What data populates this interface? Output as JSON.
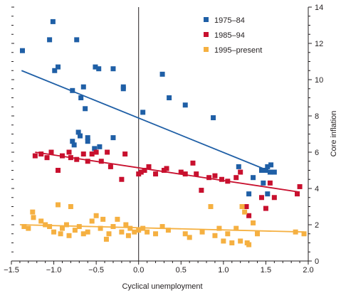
{
  "chart_data": {
    "type": "scatter",
    "xlabel": "Cyclical unemployment",
    "ylabel": "Core inflation",
    "xlim": [
      -1.5,
      2.0
    ],
    "ylim": [
      0,
      14
    ],
    "x_ticks": [
      "−1.5",
      "−1.0",
      "−0.5",
      "0.0",
      "0.5",
      "1.0",
      "1.5",
      "2.0"
    ],
    "y_ticks": [
      "0",
      "2",
      "4",
      "6",
      "8",
      "10",
      "12",
      "14"
    ],
    "y_axis_side": "right",
    "legend_position": "top-right",
    "grid": false,
    "series": [
      {
        "name": "1975–84",
        "color": "#1f5fa6",
        "trend": [
          [
            -1.38,
            10.5
          ],
          [
            1.52,
            5.0
          ]
        ],
        "points": [
          [
            -1.37,
            11.6
          ],
          [
            -1.05,
            12.2
          ],
          [
            -1.01,
            13.2
          ],
          [
            -0.99,
            10.5
          ],
          [
            -0.95,
            10.7
          ],
          [
            -0.78,
            9.4
          ],
          [
            -0.73,
            12.2
          ],
          [
            -0.68,
            9.0
          ],
          [
            -0.65,
            9.6
          ],
          [
            -0.63,
            8.4
          ],
          [
            -0.6,
            6.8
          ],
          [
            -0.6,
            6.6
          ],
          [
            -0.51,
            10.7
          ],
          [
            -0.47,
            10.6
          ],
          [
            -0.3,
            10.6
          ],
          [
            -0.18,
            9.6
          ],
          [
            -0.18,
            9.5
          ],
          [
            0.05,
            8.2
          ],
          [
            0.28,
            10.3
          ],
          [
            0.36,
            9.0
          ],
          [
            0.55,
            8.6
          ],
          [
            0.88,
            7.9
          ],
          [
            -0.78,
            6.6
          ],
          [
            -0.76,
            6.4
          ],
          [
            -0.71,
            7.1
          ],
          [
            -0.69,
            6.9
          ],
          [
            -0.46,
            6.3
          ],
          [
            -0.52,
            6.2
          ],
          [
            -0.3,
            6.8
          ],
          [
            1.18,
            5.2
          ],
          [
            1.3,
            3.7
          ],
          [
            1.35,
            4.6
          ],
          [
            1.45,
            5.0
          ],
          [
            1.47,
            4.3
          ],
          [
            1.5,
            5.0
          ],
          [
            1.52,
            5.2
          ],
          [
            1.55,
            4.9
          ],
          [
            1.56,
            5.3
          ],
          [
            1.6,
            4.9
          ],
          [
            1.52,
            3.7
          ]
        ]
      },
      {
        "name": "1985–94",
        "color": "#c8102e",
        "trend": [
          [
            -1.22,
            6.0
          ],
          [
            1.9,
            3.8
          ]
        ],
        "points": [
          [
            -1.22,
            5.8
          ],
          [
            -1.15,
            5.9
          ],
          [
            -1.08,
            5.7
          ],
          [
            -1.03,
            6.0
          ],
          [
            -0.95,
            5.0
          ],
          [
            -0.9,
            5.8
          ],
          [
            -0.82,
            6.0
          ],
          [
            -0.8,
            5.7
          ],
          [
            -0.73,
            5.6
          ],
          [
            -0.65,
            5.9
          ],
          [
            -0.6,
            5.5
          ],
          [
            -0.55,
            5.9
          ],
          [
            -0.5,
            6.0
          ],
          [
            -0.44,
            5.5
          ],
          [
            -0.37,
            6.0
          ],
          [
            -0.33,
            5.2
          ],
          [
            -0.2,
            4.5
          ],
          [
            -0.16,
            5.9
          ],
          [
            0.0,
            4.8
          ],
          [
            0.03,
            4.9
          ],
          [
            0.07,
            5.0
          ],
          [
            0.12,
            5.2
          ],
          [
            0.2,
            4.8
          ],
          [
            0.3,
            5.0
          ],
          [
            0.33,
            5.1
          ],
          [
            0.5,
            4.9
          ],
          [
            0.55,
            4.8
          ],
          [
            0.64,
            5.4
          ],
          [
            0.68,
            4.8
          ],
          [
            0.74,
            3.9
          ],
          [
            0.83,
            4.6
          ],
          [
            0.9,
            4.7
          ],
          [
            0.98,
            4.5
          ],
          [
            1.05,
            4.4
          ],
          [
            1.15,
            4.6
          ],
          [
            1.2,
            4.9
          ],
          [
            1.27,
            3.0
          ],
          [
            1.3,
            2.5
          ],
          [
            1.45,
            3.5
          ],
          [
            1.5,
            2.9
          ],
          [
            1.55,
            4.3
          ],
          [
            1.6,
            3.5
          ],
          [
            1.87,
            3.7
          ],
          [
            1.9,
            4.1
          ]
        ]
      },
      {
        "name": "1995–present",
        "color": "#f5b041",
        "trend": [
          [
            -1.4,
            2.0
          ],
          [
            1.95,
            1.6
          ]
        ],
        "points": [
          [
            -1.35,
            1.9
          ],
          [
            -1.3,
            1.8
          ],
          [
            -1.25,
            2.7
          ],
          [
            -1.24,
            2.4
          ],
          [
            -1.15,
            2.2
          ],
          [
            -1.1,
            2.0
          ],
          [
            -1.05,
            1.9
          ],
          [
            -1.0,
            1.6
          ],
          [
            -0.95,
            3.1
          ],
          [
            -0.92,
            1.5
          ],
          [
            -0.9,
            1.8
          ],
          [
            -0.85,
            2.0
          ],
          [
            -0.82,
            1.4
          ],
          [
            -0.8,
            3.0
          ],
          [
            -0.75,
            1.7
          ],
          [
            -0.7,
            1.9
          ],
          [
            -0.65,
            1.5
          ],
          [
            -0.6,
            1.6
          ],
          [
            -0.55,
            2.2
          ],
          [
            -0.5,
            2.5
          ],
          [
            -0.45,
            1.8
          ],
          [
            -0.42,
            2.3
          ],
          [
            -0.38,
            1.2
          ],
          [
            -0.35,
            1.5
          ],
          [
            -0.3,
            1.9
          ],
          [
            -0.25,
            2.3
          ],
          [
            -0.2,
            1.6
          ],
          [
            -0.15,
            2.0
          ],
          [
            -0.12,
            1.4
          ],
          [
            -0.1,
            1.8
          ],
          [
            -0.05,
            1.6
          ],
          [
            0.0,
            1.7
          ],
          [
            0.05,
            1.8
          ],
          [
            0.1,
            1.6
          ],
          [
            0.2,
            1.5
          ],
          [
            0.28,
            1.9
          ],
          [
            0.35,
            1.7
          ],
          [
            0.55,
            1.5
          ],
          [
            0.6,
            1.3
          ],
          [
            0.75,
            1.6
          ],
          [
            0.85,
            3.0
          ],
          [
            0.9,
            1.4
          ],
          [
            0.95,
            1.8
          ],
          [
            1.0,
            1.1
          ],
          [
            1.05,
            1.5
          ],
          [
            1.1,
            1.0
          ],
          [
            1.15,
            1.8
          ],
          [
            1.2,
            1.1
          ],
          [
            1.22,
            3.0
          ],
          [
            1.25,
            2.7
          ],
          [
            1.28,
            1.0
          ],
          [
            1.3,
            0.9
          ],
          [
            1.35,
            2.1
          ],
          [
            1.4,
            1.5
          ],
          [
            1.85,
            1.6
          ],
          [
            1.95,
            1.5
          ]
        ]
      }
    ]
  }
}
